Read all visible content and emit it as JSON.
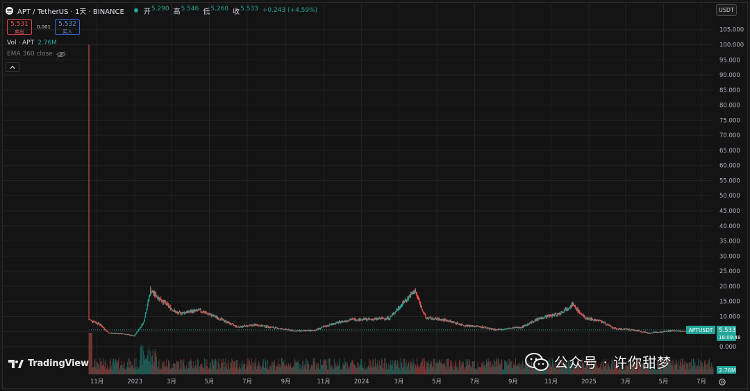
{
  "header": {
    "symbol_title": "APT / TetherUS · 1天 · BINANCE",
    "ohlc": [
      {
        "label": "开",
        "value": "5.290"
      },
      {
        "label": "高",
        "value": "5.546"
      },
      {
        "label": "低",
        "value": "5.260"
      },
      {
        "label": "收",
        "value": "5.533"
      }
    ],
    "change": "+0.243 (+4.59%)"
  },
  "trade": {
    "sell_price": "5.531",
    "sell_label": "卖出",
    "spread": "0.001",
    "buy_price": "5.532",
    "buy_label": "买入"
  },
  "indicators": {
    "vol_label": "Vol · APT",
    "vol_value": "2.76M",
    "ema_label": "EMA 360 close"
  },
  "currency": "USDT",
  "branding": {
    "tradingview": "TradingView",
    "watermark": "公众号 · 许你甜梦"
  },
  "colors": {
    "up": "#26a69a",
    "down": "#ef5350",
    "background": "#141414",
    "grid": "#232323"
  },
  "chart_data": {
    "type": "candlestick",
    "symbol": "APTUSDT",
    "x_start": "2022-10-19",
    "x_end": "2025-07-20",
    "x_tick_labels": [
      "11月",
      "2023",
      "3月",
      "5月",
      "7月",
      "9月",
      "11月",
      "2024",
      "3月",
      "5月",
      "7月",
      "9月",
      "11月",
      "2025",
      "3月",
      "5月",
      "7月"
    ],
    "x_tick_dates": [
      "2022-11-01",
      "2023-01-01",
      "2023-03-01",
      "2023-05-01",
      "2023-07-01",
      "2023-09-01",
      "2023-11-01",
      "2024-01-01",
      "2024-03-01",
      "2024-05-01",
      "2024-07-01",
      "2024-09-01",
      "2024-11-01",
      "2025-01-01",
      "2025-03-01",
      "2025-05-01",
      "2025-07-01"
    ],
    "ylim": [
      0,
      107
    ],
    "y_tick_labels": [
      "0.000",
      "5.000",
      "10.000",
      "15.000",
      "20.000",
      "25.000",
      "30.000",
      "35.000",
      "40.000",
      "45.000",
      "50.000",
      "55.000",
      "60.000",
      "65.000",
      "70.000",
      "75.000",
      "80.000",
      "85.000",
      "90.000",
      "95.000",
      "100.000",
      "105.000"
    ],
    "y_tick_values": [
      0,
      5,
      10,
      15,
      20,
      25,
      30,
      35,
      40,
      45,
      50,
      55,
      60,
      65,
      70,
      75,
      80,
      85,
      90,
      95,
      100,
      105
    ],
    "price_path": [
      {
        "date": "2022-10-19",
        "close": 9.0,
        "high": 100.0
      },
      {
        "date": "2022-11-05",
        "close": 7.5
      },
      {
        "date": "2022-11-20",
        "close": 4.5
      },
      {
        "date": "2022-12-15",
        "close": 4.2
      },
      {
        "date": "2022-12-31",
        "close": 3.5
      },
      {
        "date": "2023-01-15",
        "close": 8.0
      },
      {
        "date": "2023-01-26",
        "close": 18.5,
        "high": 20.0
      },
      {
        "date": "2023-02-15",
        "close": 15.0
      },
      {
        "date": "2023-03-10",
        "close": 11.0
      },
      {
        "date": "2023-04-15",
        "close": 12.0
      },
      {
        "date": "2023-05-15",
        "close": 9.5
      },
      {
        "date": "2023-06-15",
        "close": 6.5
      },
      {
        "date": "2023-07-15",
        "close": 7.2
      },
      {
        "date": "2023-08-15",
        "close": 6.2
      },
      {
        "date": "2023-09-15",
        "close": 5.2
      },
      {
        "date": "2023-10-15",
        "close": 5.3
      },
      {
        "date": "2023-11-15",
        "close": 7.5
      },
      {
        "date": "2023-12-15",
        "close": 9.0
      },
      {
        "date": "2024-01-15",
        "close": 9.0
      },
      {
        "date": "2024-02-15",
        "close": 9.5
      },
      {
        "date": "2024-03-10",
        "close": 15.0
      },
      {
        "date": "2024-03-27",
        "close": 18.5,
        "high": 19.0
      },
      {
        "date": "2024-04-13",
        "close": 9.5
      },
      {
        "date": "2024-05-15",
        "close": 8.8
      },
      {
        "date": "2024-06-15",
        "close": 7.0
      },
      {
        "date": "2024-07-15",
        "close": 6.5
      },
      {
        "date": "2024-08-05",
        "close": 5.5
      },
      {
        "date": "2024-09-15",
        "close": 6.5
      },
      {
        "date": "2024-10-15",
        "close": 9.5
      },
      {
        "date": "2024-11-15",
        "close": 11.0
      },
      {
        "date": "2024-12-05",
        "close": 14.0,
        "high": 15.0
      },
      {
        "date": "2024-12-25",
        "close": 9.5
      },
      {
        "date": "2025-01-20",
        "close": 8.5
      },
      {
        "date": "2025-02-10",
        "close": 6.0
      },
      {
        "date": "2025-03-15",
        "close": 5.5
      },
      {
        "date": "2025-04-07",
        "close": 4.5
      },
      {
        "date": "2025-05-15",
        "close": 5.3
      },
      {
        "date": "2025-06-15",
        "close": 4.8
      },
      {
        "date": "2025-07-20",
        "close": 5.533
      }
    ],
    "last_price": {
      "label": "APTUSDT",
      "value": "5.533",
      "countdown": "18:09:48"
    },
    "volume": {
      "last_value": "2.76M"
    },
    "grid": true
  }
}
